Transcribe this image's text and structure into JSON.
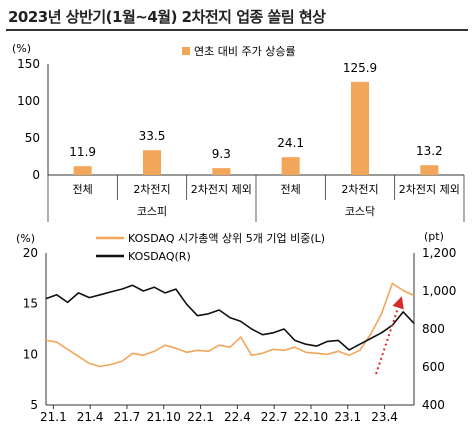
{
  "title": "2023년 상반기(1월~4월) 2차전지 업종 쏠림 현상",
  "colors": {
    "orange": "#F2A65A",
    "black": "#111111",
    "arrow": "#D92B2B",
    "axis": "#333333",
    "grid": "#999999"
  },
  "chart_data": [
    {
      "type": "bar",
      "yunit": "(%)",
      "ylim": [
        0,
        150
      ],
      "yticks": [
        0,
        50,
        100,
        150
      ],
      "legend": "연초 대비 주가 상승률",
      "categories": [
        "전체",
        "2차전지",
        "2차전지 제외",
        "전체",
        "2차전지",
        "2차전지 제외"
      ],
      "values": [
        11.9,
        33.5,
        9.3,
        24.1,
        125.9,
        13.2
      ],
      "value_labels": [
        "11.9",
        "33.5",
        "9.3",
        "24.1",
        "125.9",
        "13.2"
      ],
      "groups": [
        "코스피",
        "코스닥"
      ]
    },
    {
      "type": "line",
      "ylabel_left": "(%)",
      "ylabel_right": "(pt)",
      "ylim_left": [
        5,
        20
      ],
      "yticks_left": [
        5,
        10,
        15,
        20
      ],
      "ylim_right": [
        400,
        1200
      ],
      "yticks_right": [
        "400",
        "600",
        "800",
        "1,000",
        "1,200"
      ],
      "xticks": [
        "21.1",
        "21.4",
        "21.7",
        "21.10",
        "22.1",
        "22.4",
        "22.7",
        "22.10",
        "23.1",
        "23.4"
      ],
      "series": [
        {
          "name": "KOSDAQ 시가총액 상위 5개 기업 비중(L)",
          "axis": "left",
          "points": [
            [
              0,
              11.4
            ],
            [
              1,
              11.2
            ],
            [
              2,
              10.5
            ],
            [
              3,
              9.8
            ],
            [
              4,
              9.1
            ],
            [
              5,
              8.8
            ],
            [
              6,
              9.0
            ],
            [
              7,
              9.3
            ],
            [
              8,
              10.1
            ],
            [
              9,
              9.9
            ],
            [
              10,
              10.3
            ],
            [
              11,
              10.9
            ],
            [
              12,
              10.6
            ],
            [
              13,
              10.2
            ],
            [
              14,
              10.4
            ],
            [
              15,
              10.3
            ],
            [
              16,
              10.9
            ],
            [
              17,
              10.7
            ],
            [
              18,
              11.7
            ],
            [
              19,
              9.9
            ],
            [
              20,
              10.1
            ],
            [
              21,
              10.5
            ],
            [
              22,
              10.4
            ],
            [
              23,
              10.7
            ],
            [
              24,
              10.2
            ],
            [
              25,
              10.1
            ],
            [
              26,
              10.0
            ],
            [
              27,
              10.3
            ],
            [
              28,
              9.9
            ],
            [
              29,
              10.4
            ],
            [
              30,
              12.0
            ],
            [
              31,
              14.0
            ],
            [
              32,
              17.0
            ],
            [
              33,
              16.3
            ],
            [
              34,
              15.8
            ]
          ]
        },
        {
          "name": "KOSDAQ(R)",
          "axis": "right",
          "points": [
            [
              0,
              960
            ],
            [
              1,
              980
            ],
            [
              2,
              940
            ],
            [
              3,
              990
            ],
            [
              4,
              965
            ],
            [
              5,
              980
            ],
            [
              6,
              995
            ],
            [
              7,
              1010
            ],
            [
              8,
              1030
            ],
            [
              9,
              1000
            ],
            [
              10,
              1020
            ],
            [
              11,
              990
            ],
            [
              12,
              1010
            ],
            [
              13,
              930
            ],
            [
              14,
              870
            ],
            [
              15,
              880
            ],
            [
              16,
              900
            ],
            [
              17,
              860
            ],
            [
              18,
              840
            ],
            [
              19,
              800
            ],
            [
              20,
              770
            ],
            [
              21,
              780
            ],
            [
              22,
              800
            ],
            [
              23,
              740
            ],
            [
              24,
              720
            ],
            [
              25,
              710
            ],
            [
              26,
              735
            ],
            [
              27,
              740
            ],
            [
              28,
              690
            ],
            [
              29,
              720
            ],
            [
              30,
              750
            ],
            [
              31,
              780
            ],
            [
              32,
              820
            ],
            [
              33,
              890
            ],
            [
              34,
              830
            ]
          ]
        }
      ],
      "x_count": 34
    }
  ]
}
